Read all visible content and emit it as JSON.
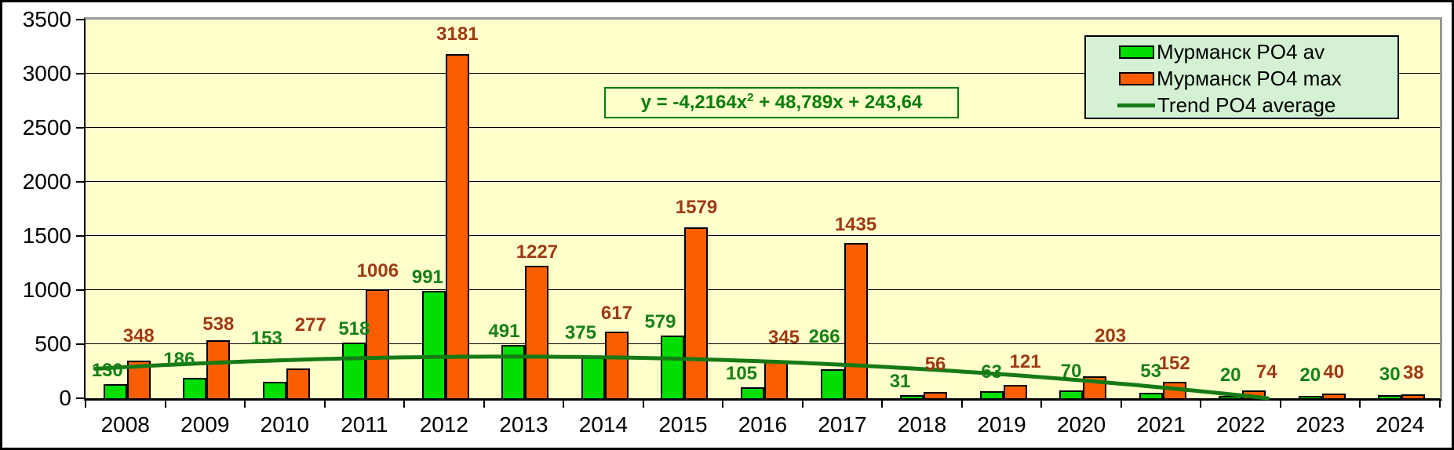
{
  "chart_data": {
    "type": "bar",
    "title": "",
    "categories": [
      "2008",
      "2009",
      "2010",
      "2011",
      "2012",
      "2013",
      "2014",
      "2015",
      "2016",
      "2017",
      "2018",
      "2019",
      "2020",
      "2021",
      "2022",
      "2023",
      "2024"
    ],
    "ylim": [
      0,
      3500
    ],
    "ytick_step": 500,
    "grid": true,
    "legend_position": "top-right",
    "series": [
      {
        "name": "Мурманск PO4 av",
        "color": "#00DF00",
        "label_color": "#188018",
        "values": [
          130,
          186,
          153,
          518,
          991,
          491,
          375,
          579,
          105,
          266,
          31,
          63,
          70,
          53,
          20,
          20,
          30
        ],
        "label_dx": [
          -10,
          -20,
          -10,
          0,
          -8,
          -12,
          -16,
          -16,
          -14,
          -10,
          -15,
          0,
          0,
          0,
          0,
          0,
          0
        ],
        "label_raise": [
          0,
          6,
          38,
          0,
          0,
          0,
          14,
          0,
          0,
          24,
          0,
          7,
          7,
          10,
          9,
          9,
          9
        ]
      },
      {
        "name": "Мурманск PO4 max",
        "color": "#FB5E00",
        "label_color": "#9E3A14",
        "values": [
          348,
          538,
          277,
          1006,
          3181,
          1227,
          617,
          1579,
          345,
          1435,
          56,
          121,
          203,
          152,
          74,
          40,
          38
        ],
        "label_dx": [
          0,
          0,
          16,
          0,
          0,
          0,
          0,
          0,
          10,
          0,
          0,
          13,
          20,
          0,
          16,
          0,
          0
        ],
        "label_raise": [
          14,
          3,
          38,
          6,
          8,
          0,
          6,
          8,
          12,
          6,
          18,
          12,
          34,
          6,
          6,
          10,
          10
        ]
      }
    ],
    "trendline": {
      "name": "Trend PO4 average",
      "color": "#157A15",
      "coeffs": {
        "a": -4.2164,
        "b": 48.789,
        "c": 243.64
      }
    },
    "equation": {
      "pre": "y = -4,2164x",
      "sup": "2",
      "post": " + 48,789x + 243,64",
      "color": "#0A7D0A"
    }
  },
  "colors": {
    "page_bg": "#FFFFFF",
    "plot_bg": "#FFFFCC",
    "legend_bg": "#D4F1D4",
    "gridline": "#000000",
    "axis": "#000000",
    "frame": "#999999"
  }
}
